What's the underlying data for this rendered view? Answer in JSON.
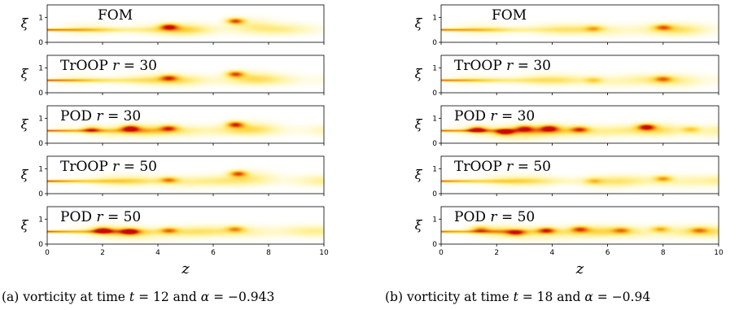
{
  "chart_data": [
    {
      "type": "heatmap",
      "caption": {
        "prefix": "(a) vorticity at time ",
        "time_symbol": "t",
        "time_value": "= 12",
        "conj": " and ",
        "alpha_symbol": "α",
        "alpha_value": "= −0.943"
      },
      "xlabel": "z",
      "ylabel": "ξ",
      "xlim": [
        0,
        10
      ],
      "ylim": [
        0,
        1.5
      ],
      "xticks": [
        "0",
        "2",
        "4",
        "6",
        "8",
        "10"
      ],
      "yticks": [
        "0",
        "1"
      ],
      "colormap": [
        "#ffffff",
        "#fff3a0",
        "#ffd23c",
        "#f07814",
        "#c80a00"
      ],
      "panels": [
        {
          "label": "FOM",
          "jet_strength": 0.9,
          "blobs": [
            {
              "z": 4.4,
              "xi": 0.62,
              "intensity": 0.75
            },
            {
              "z": 6.8,
              "xi": 0.85,
              "intensity": 0.8
            }
          ]
        },
        {
          "label": "TrOOP 𝑟 = 30",
          "jet_strength": 0.9,
          "blobs": [
            {
              "z": 4.4,
              "xi": 0.6,
              "intensity": 0.6
            },
            {
              "z": 6.8,
              "xi": 0.75,
              "intensity": 0.75
            }
          ]
        },
        {
          "label": "POD 𝑟 = 30",
          "jet_strength": 0.9,
          "blobs": [
            {
              "z": 1.6,
              "xi": 0.55,
              "intensity": 0.55
            },
            {
              "z": 3.0,
              "xi": 0.6,
              "intensity": 0.75
            },
            {
              "z": 4.4,
              "xi": 0.6,
              "intensity": 0.65
            },
            {
              "z": 6.8,
              "xi": 0.75,
              "intensity": 0.8
            }
          ]
        },
        {
          "label": "TrOOP 𝑟 = 50",
          "jet_strength": 0.9,
          "blobs": [
            {
              "z": 4.4,
              "xi": 0.55,
              "intensity": 0.55
            },
            {
              "z": 6.9,
              "xi": 0.8,
              "intensity": 0.75
            }
          ]
        },
        {
          "label": "POD 𝑟 = 50",
          "jet_strength": 0.9,
          "blobs": [
            {
              "z": 2.0,
              "xi": 0.55,
              "intensity": 0.7
            },
            {
              "z": 3.0,
              "xi": 0.5,
              "intensity": 0.7
            },
            {
              "z": 4.4,
              "xi": 0.55,
              "intensity": 0.55
            },
            {
              "z": 6.8,
              "xi": 0.6,
              "intensity": 0.5
            }
          ]
        }
      ]
    },
    {
      "type": "heatmap",
      "caption": {
        "prefix": "(b) vorticity at time ",
        "time_symbol": "t",
        "time_value": "= 18",
        "conj": " and ",
        "alpha_symbol": "α",
        "alpha_value": "= −0.94"
      },
      "xlabel": "z",
      "ylabel": "ξ",
      "xlim": [
        0,
        10
      ],
      "ylim": [
        0,
        1.5
      ],
      "xticks": [
        "0",
        "2",
        "4",
        "6",
        "8",
        "10"
      ],
      "yticks": [
        "0",
        "1"
      ],
      "colormap": [
        "#ffffff",
        "#fff3a0",
        "#ffd23c",
        "#f07814",
        "#c80a00"
      ],
      "panels": [
        {
          "label": "FOM",
          "jet_strength": 0.85,
          "blobs": [
            {
              "z": 5.5,
              "xi": 0.55,
              "intensity": 0.4
            },
            {
              "z": 8.0,
              "xi": 0.6,
              "intensity": 0.55
            }
          ]
        },
        {
          "label": "TrOOP 𝑟 = 30",
          "jet_strength": 0.85,
          "blobs": [
            {
              "z": 5.5,
              "xi": 0.5,
              "intensity": 0.35
            },
            {
              "z": 8.0,
              "xi": 0.55,
              "intensity": 0.5
            }
          ]
        },
        {
          "label": "POD 𝑟 = 30",
          "jet_strength": 0.85,
          "blobs": [
            {
              "z": 1.3,
              "xi": 0.55,
              "intensity": 0.8
            },
            {
              "z": 2.3,
              "xi": 0.45,
              "intensity": 0.75
            },
            {
              "z": 3.0,
              "xi": 0.6,
              "intensity": 0.6
            },
            {
              "z": 3.9,
              "xi": 0.6,
              "intensity": 0.7
            },
            {
              "z": 5.0,
              "xi": 0.55,
              "intensity": 0.65
            },
            {
              "z": 7.4,
              "xi": 0.65,
              "intensity": 0.85
            },
            {
              "z": 9.0,
              "xi": 0.55,
              "intensity": 0.4
            }
          ]
        },
        {
          "label": "TrOOP 𝑟 = 50",
          "jet_strength": 0.85,
          "blobs": [
            {
              "z": 5.5,
              "xi": 0.5,
              "intensity": 0.35
            },
            {
              "z": 8.0,
              "xi": 0.6,
              "intensity": 0.55
            }
          ]
        },
        {
          "label": "POD 𝑟 = 50",
          "jet_strength": 0.85,
          "blobs": [
            {
              "z": 1.4,
              "xi": 0.6,
              "intensity": 0.5
            },
            {
              "z": 2.7,
              "xi": 0.45,
              "intensity": 0.55
            },
            {
              "z": 3.8,
              "xi": 0.55,
              "intensity": 0.7
            },
            {
              "z": 5.0,
              "xi": 0.6,
              "intensity": 0.6
            },
            {
              "z": 6.5,
              "xi": 0.55,
              "intensity": 0.45
            },
            {
              "z": 7.9,
              "xi": 0.6,
              "intensity": 0.5
            },
            {
              "z": 9.3,
              "xi": 0.55,
              "intensity": 0.45
            }
          ]
        }
      ]
    }
  ]
}
